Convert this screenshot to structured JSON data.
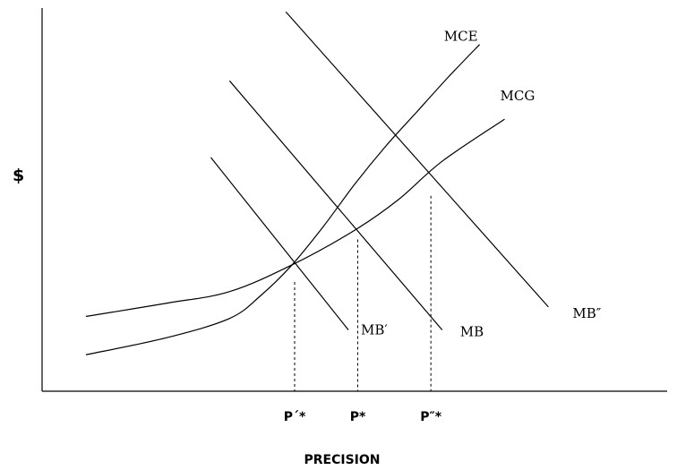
{
  "chart_data": {
    "type": "line",
    "title": "",
    "xlabel": "PRECISION",
    "ylabel": "$",
    "xlim": [
      0,
      100
    ],
    "ylim": [
      0,
      100
    ],
    "grid": false,
    "series": [
      {
        "name": "MCE",
        "kind": "curve",
        "points": [
          [
            7,
            9.5
          ],
          [
            20,
            14
          ],
          [
            30,
            19
          ],
          [
            35,
            25
          ],
          [
            40,
            33
          ],
          [
            45,
            43
          ],
          [
            50,
            54
          ],
          [
            55,
            64
          ],
          [
            60,
            73
          ],
          [
            65,
            82
          ],
          [
            70,
            90.5
          ]
        ]
      },
      {
        "name": "MCG",
        "kind": "curve",
        "points": [
          [
            7,
            19.5
          ],
          [
            20,
            23
          ],
          [
            30,
            26
          ],
          [
            40,
            33
          ],
          [
            50,
            42
          ],
          [
            57,
            50
          ],
          [
            64,
            60
          ],
          [
            74,
            71
          ]
        ]
      },
      {
        "name": "MB′",
        "kind": "line",
        "points": [
          [
            27,
            61
          ],
          [
            49,
            16
          ]
        ]
      },
      {
        "name": "MB",
        "kind": "line",
        "points": [
          [
            30,
            81
          ],
          [
            64,
            16
          ]
        ]
      },
      {
        "name": "MB″",
        "kind": "line",
        "points": [
          [
            39,
            99
          ],
          [
            81,
            22
          ]
        ]
      }
    ],
    "equilibria": [
      {
        "label": "P´*",
        "x": 40.4,
        "y": 28.5
      },
      {
        "label": "P*",
        "x": 50.5,
        "y": 39.6
      },
      {
        "label": "P″*",
        "x": 62.2,
        "y": 51.0
      }
    ]
  }
}
